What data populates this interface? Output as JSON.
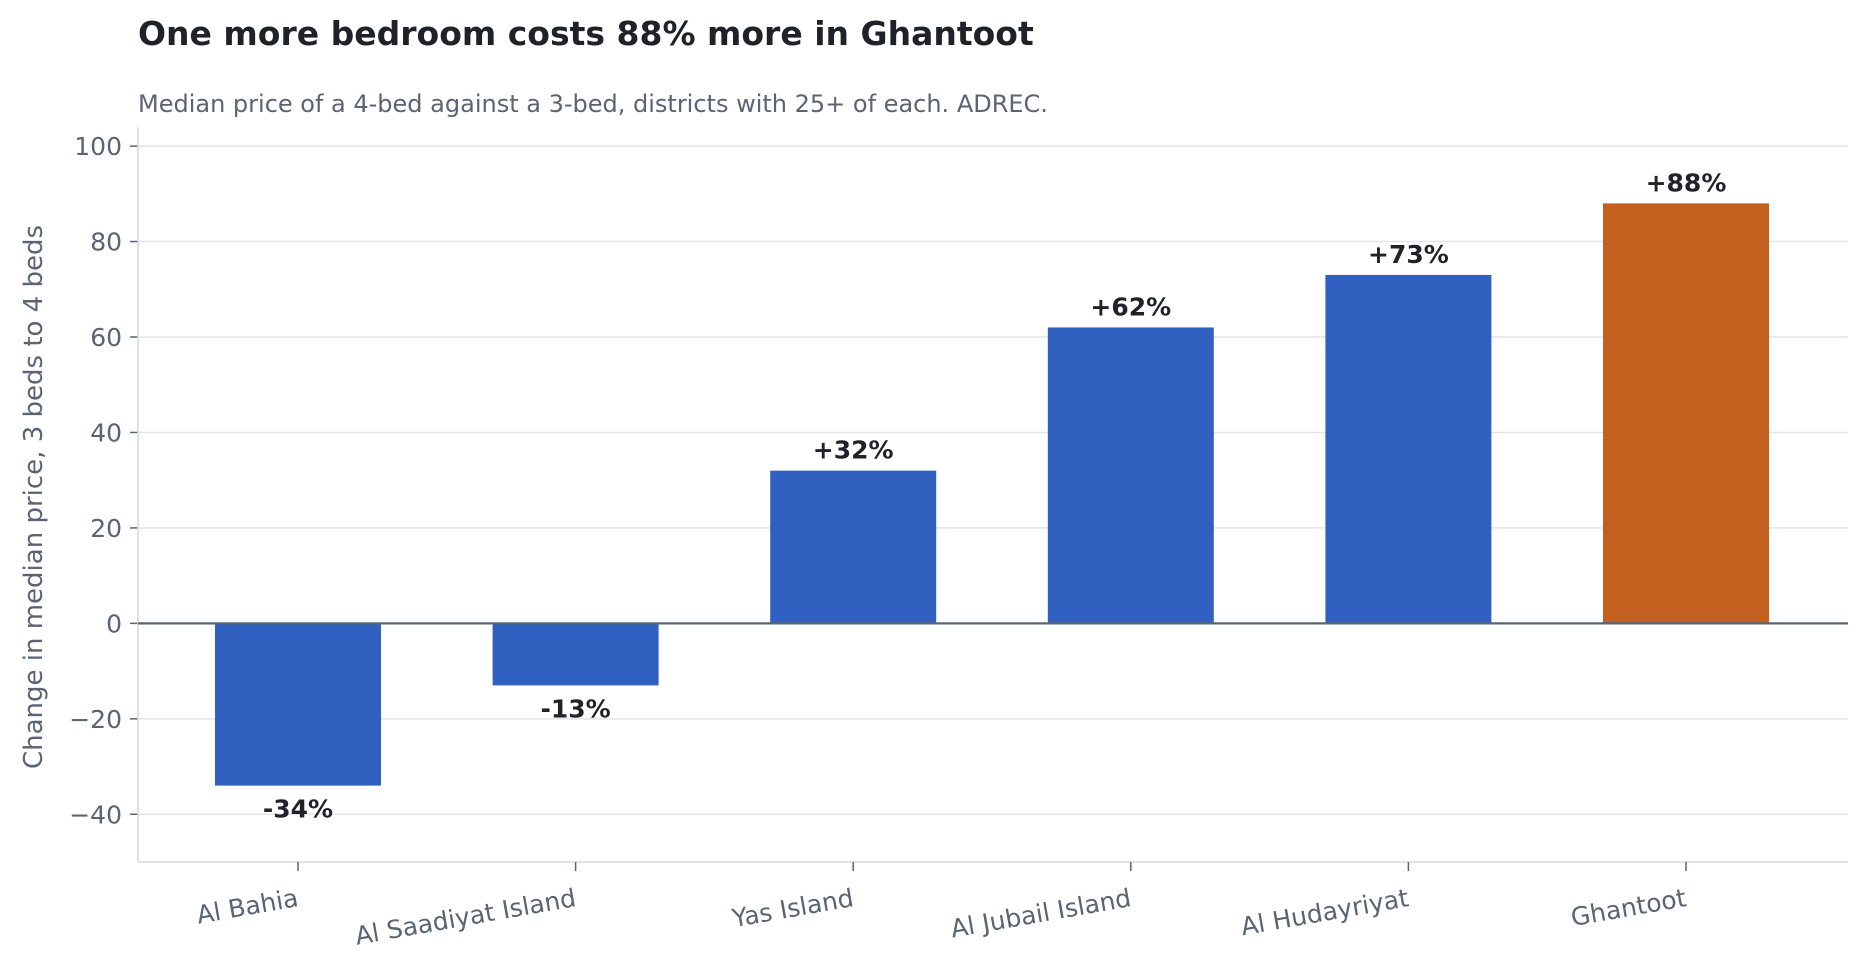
{
  "chart_data": {
    "type": "bar",
    "title": "One more bedroom costs 88% more in Ghantoot",
    "subtitle": "Median price of a 4-bed against a 3-bed, districts with 25+ of each. ADREC.",
    "xlabel": "",
    "ylabel": "Change in median price, 3 beds to 4 beds",
    "categories": [
      "Al Bahia",
      "Al Saadiyat Island",
      "Yas Island",
      "Al Jubail Island",
      "Al Hudayriyat",
      "Ghantoot"
    ],
    "values": [
      -34,
      -13,
      32,
      62,
      73,
      88
    ],
    "data_labels": [
      "-34%",
      "-13%",
      "+32%",
      "+62%",
      "+73%",
      "+88%"
    ],
    "highlight_index": 5,
    "ylim": [
      -50,
      104
    ],
    "yticks": [
      -40,
      -20,
      0,
      20,
      40,
      60,
      80,
      100
    ],
    "ytick_labels": [
      "−40",
      "−20",
      "0",
      "20",
      "40",
      "60",
      "80",
      "100"
    ],
    "grid": true,
    "legend": "none",
    "colors": {
      "bar": "#3060c0",
      "highlight": "#c26020",
      "zero_line": "#5a6473",
      "grid": "#e2e4e8",
      "axis": "#d6d9de",
      "text": "#5a6473",
      "label_text": "#1f2329"
    }
  }
}
